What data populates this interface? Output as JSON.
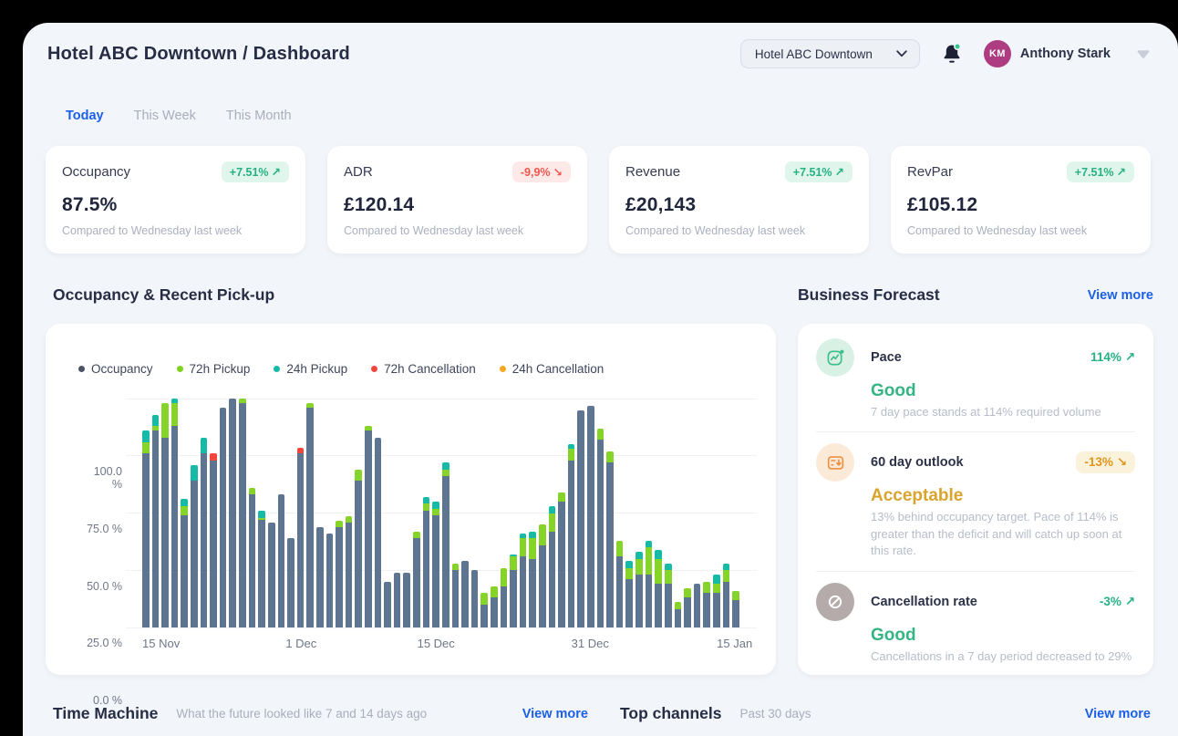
{
  "header": {
    "title": "Hotel ABC Downtown / Dashboard",
    "hotel_selector": {
      "label": "Hotel ABC Downtown"
    },
    "notifications": {
      "unread_dot": true
    },
    "user": {
      "initials": "KM",
      "name": "Anthony Stark"
    }
  },
  "glyphs": {
    "up": "↗",
    "down": "↘"
  },
  "labels": {
    "view_more": "View more"
  },
  "tabs": [
    {
      "label": "Today",
      "active": true
    },
    {
      "label": "This Week",
      "active": false
    },
    {
      "label": "This Month",
      "active": false
    }
  ],
  "kpis": [
    {
      "label": "Occupancy",
      "delta": "+7.51%",
      "direction": "up",
      "value": "87.5%",
      "note": "Compared to Wednesday last week"
    },
    {
      "label": "ADR",
      "delta": "-9,9%",
      "direction": "down",
      "value": "£120.14",
      "note": "Compared to Wednesday last week"
    },
    {
      "label": "Revenue",
      "delta": "+7.51%",
      "direction": "up",
      "value": "£20,143",
      "note": "Compared to Wednesday last week"
    },
    {
      "label": "RevPar",
      "delta": "+7.51%",
      "direction": "up",
      "value": "£105.12",
      "note": "Compared to Wednesday last week"
    }
  ],
  "sections": {
    "chart_title": "Occupancy & Recent Pick-up",
    "forecast_title": "Business Forecast"
  },
  "chart_data": {
    "type": "stacked-bar",
    "title": "Occupancy & Recent Pick-up",
    "unit": "%",
    "ylim": [
      0,
      100
    ],
    "yticks": [
      "100.0 %",
      "75.0 %",
      "50.0 %",
      "25.0 %",
      "0.0 %"
    ],
    "grid": true,
    "legend_position": "top-left",
    "series": [
      {
        "name": "Occupancy",
        "color": "#5d7590",
        "dot": "#4a5366"
      },
      {
        "name": "72h Pickup",
        "color": "#86d32a",
        "dot": "#7ed321"
      },
      {
        "name": "24h Pickup",
        "color": "#17b9a7",
        "dot": "#17b9a7"
      },
      {
        "name": "72h Cancellation",
        "color": "#f2463f",
        "dot": "#f2463f"
      },
      {
        "name": "24h Cancellation",
        "color": "#f5a623",
        "dot": "#f5a623"
      }
    ],
    "x_range": [
      "15 Nov",
      "15 Jan"
    ],
    "xticks": [
      {
        "label": "15 Nov",
        "bar": 0
      },
      {
        "label": "1 Dec",
        "bar": 16
      },
      {
        "label": "15 Dec",
        "bar": 30
      },
      {
        "label": "31 Dec",
        "bar": 46
      },
      {
        "label": "15 Jan",
        "bar": 61
      }
    ],
    "bars": [
      [
        76,
        5,
        5,
        0,
        0
      ],
      [
        86,
        2,
        5,
        0,
        0
      ],
      [
        83,
        15,
        0,
        0,
        0
      ],
      [
        88,
        10,
        2,
        0,
        0
      ],
      [
        49,
        4,
        3,
        0,
        0
      ],
      [
        64,
        0,
        7,
        0,
        0
      ],
      [
        76,
        0,
        7,
        0,
        0
      ],
      [
        73,
        0,
        0,
        3,
        0
      ],
      [
        96,
        0,
        0,
        0,
        0
      ],
      [
        100,
        0,
        0,
        0,
        0
      ],
      [
        98,
        2,
        0,
        0,
        0
      ],
      [
        58,
        3,
        0,
        0,
        0
      ],
      [
        47,
        1,
        3,
        0,
        0
      ],
      [
        46,
        0,
        0,
        0,
        0
      ],
      [
        58,
        0,
        0,
        0,
        0
      ],
      [
        39,
        0,
        0,
        0,
        0
      ],
      [
        76,
        0,
        0,
        2.5,
        0
      ],
      [
        96,
        2,
        0,
        0,
        0
      ],
      [
        44,
        0,
        0,
        0,
        0
      ],
      [
        41,
        0,
        0,
        0,
        0
      ],
      [
        44,
        2.5,
        0,
        0,
        0
      ],
      [
        46,
        2.5,
        0,
        0,
        0
      ],
      [
        64,
        5,
        0,
        0,
        0
      ],
      [
        86,
        2,
        0,
        0,
        0
      ],
      [
        83,
        0,
        0,
        0,
        0
      ],
      [
        20,
        0,
        0,
        0,
        0
      ],
      [
        24,
        0,
        0,
        0,
        0
      ],
      [
        24,
        0,
        0,
        0,
        0
      ],
      [
        39,
        3,
        0,
        0,
        0
      ],
      [
        51,
        3,
        3,
        0,
        0
      ],
      [
        49,
        3,
        3,
        0,
        0
      ],
      [
        66,
        3,
        3,
        0,
        0
      ],
      [
        25,
        3,
        0,
        0,
        0
      ],
      [
        29,
        0,
        0,
        0,
        0
      ],
      [
        25,
        0,
        0,
        0,
        0
      ],
      [
        10,
        5,
        0,
        0,
        0
      ],
      [
        13,
        5,
        0,
        0,
        0
      ],
      [
        18,
        8,
        0,
        0,
        0
      ],
      [
        25,
        6,
        1,
        0,
        0
      ],
      [
        31,
        8,
        2,
        0,
        0
      ],
      [
        30,
        9,
        3,
        0,
        0
      ],
      [
        36,
        9,
        0,
        0,
        0
      ],
      [
        42,
        8,
        3,
        0,
        0
      ],
      [
        55,
        4,
        0,
        0,
        0
      ],
      [
        73,
        5,
        2,
        0,
        0
      ],
      [
        95,
        0,
        0,
        0,
        0
      ],
      [
        97,
        0,
        0,
        0,
        0
      ],
      [
        82,
        5,
        0,
        0,
        0
      ],
      [
        72,
        5,
        0,
        0,
        0
      ],
      [
        31,
        7,
        0,
        0,
        0
      ],
      [
        21,
        5,
        3,
        0,
        0
      ],
      [
        23,
        7,
        3,
        0,
        0
      ],
      [
        23,
        12,
        3,
        0,
        0
      ],
      [
        19,
        11,
        4,
        0,
        0
      ],
      [
        19,
        6,
        3,
        0,
        0
      ],
      [
        8,
        3,
        0,
        0,
        0
      ],
      [
        13,
        4,
        0,
        0,
        0
      ],
      [
        19,
        0,
        0,
        0,
        0
      ],
      [
        15,
        5,
        0,
        0,
        0
      ],
      [
        15,
        4,
        4,
        0,
        0
      ],
      [
        20,
        5,
        3,
        0,
        0
      ],
      [
        12,
        4,
        0,
        0,
        0
      ]
    ]
  },
  "forecast": [
    {
      "icon": "pace-icon",
      "label": "Pace",
      "delta": "114%",
      "direction": "up",
      "delta_style": "up",
      "status": "Good",
      "status_style": "good",
      "description": "7 day pace stands at 114% required volume",
      "icon_bg": "#d9f1e5",
      "icon_fg": "#3dbd8c"
    },
    {
      "icon": "calendar-outlook-icon",
      "label": "60 day outlook",
      "delta": "-13%",
      "direction": "down",
      "delta_style": "amber",
      "status": "Acceptable",
      "status_style": "acceptable",
      "description": "13% behind occupancy target. Pace of 114% is greater than the deficit and will catch up soon at this rate.",
      "icon_bg": "#fcead9",
      "icon_fg": "#ef8e3f"
    },
    {
      "icon": "no-cancellation-icon",
      "label": "Cancellation rate",
      "delta": "-3%",
      "direction": "up",
      "delta_style": "up",
      "status": "Good",
      "status_style": "good",
      "description": "Cancellations in a 7 day period decreased to 29%",
      "icon_bg": "#b5abaa",
      "icon_fg": "#ffffff"
    }
  ],
  "bottom_sections": [
    {
      "title": "Time Machine",
      "subtitle": "What the future looked like 7 and 14 days ago",
      "link": "View more"
    },
    {
      "title": "Top channels",
      "subtitle": "Past 30 days",
      "link": "View more"
    }
  ],
  "colors": {
    "frame": "#000000",
    "page_bg": "#f2f5f9",
    "card_bg": "#ffffff",
    "heading": "#272d45",
    "muted": "#a9aebc",
    "accent_blue": "#1b5fe8",
    "green": "#25b183",
    "green_badge_bg": "#e0f5ec",
    "red": "#f0564e",
    "red_badge_bg": "#fde9e7",
    "amber": "#d9a42d",
    "amber_badge_bg": "#fbf2dc",
    "avatar_bg": "#ad3c80",
    "bell": "#1d2135",
    "bell_dot": "#2fc98f"
  }
}
